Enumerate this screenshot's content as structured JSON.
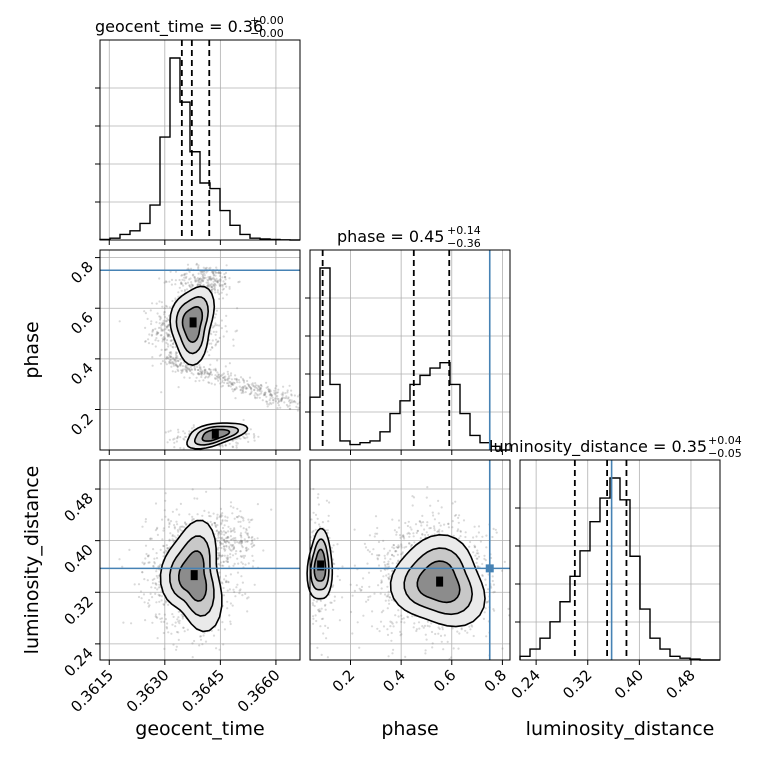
{
  "chart_data": {
    "type": "corner",
    "parameters": [
      {
        "name": "geocent_time",
        "label": "geocent_time",
        "range": [
          0.36125,
          0.36665
        ],
        "ticks": [
          0.3615,
          0.363,
          0.3645,
          0.366
        ],
        "tick_labels": [
          "0.3615",
          "0.3630",
          "0.3645",
          "0.3660"
        ]
      },
      {
        "name": "phase",
        "label": "phase",
        "range": [
          0.04,
          0.83
        ],
        "ticks": [
          0.2,
          0.4,
          0.6,
          0.8
        ],
        "tick_labels": [
          "0.2",
          "0.4",
          "0.6",
          "0.8"
        ]
      },
      {
        "name": "luminosity_distance",
        "label": "luminosity_distance",
        "range": [
          0.215,
          0.525
        ],
        "ticks": [
          0.24,
          0.32,
          0.4,
          0.48
        ],
        "tick_labels": [
          "0.24",
          "0.32",
          "0.40",
          "0.48"
        ]
      }
    ],
    "titles": [
      {
        "text": "geocent_time = 0.36",
        "sup": "+0.00",
        "sub": "−0.00"
      },
      {
        "text": "phase = 0.45",
        "sup": "+0.14",
        "sub": "−0.36"
      },
      {
        "text": "luminosity_distance = 0.35",
        "sup": "+0.04",
        "sub": "−0.05"
      }
    ],
    "histograms": [
      {
        "bin_edges": [
          0.36125,
          0.36152,
          0.36179,
          0.36206,
          0.36233,
          0.3626,
          0.36287,
          0.36314,
          0.36341,
          0.36368,
          0.36395,
          0.36422,
          0.36449,
          0.36476,
          0.36503,
          0.3653,
          0.36557,
          0.36584,
          0.36611,
          0.36638,
          0.36665
        ],
        "counts": [
          0.003,
          0.01,
          0.03,
          0.05,
          0.09,
          0.19,
          0.56,
          0.99,
          0.75,
          0.48,
          0.31,
          0.28,
          0.16,
          0.08,
          0.03,
          0.01,
          0.006,
          0.003,
          0.001,
          0.0
        ],
        "quantiles": [
          0.36346,
          0.36373,
          0.3642
        ]
      },
      {
        "bin_edges": [
          0.04,
          0.0795,
          0.119,
          0.1585,
          0.198,
          0.2375,
          0.277,
          0.3165,
          0.356,
          0.3955,
          0.435,
          0.4745,
          0.514,
          0.5535,
          0.593,
          0.6325,
          0.672,
          0.7115,
          0.751,
          0.7905,
          0.83
        ],
        "counts": [
          0.29,
          1.0,
          0.36,
          0.05,
          0.03,
          0.04,
          0.05,
          0.1,
          0.2,
          0.27,
          0.36,
          0.41,
          0.45,
          0.48,
          0.36,
          0.2,
          0.08,
          0.04,
          0.02,
          0.0
        ],
        "quantiles": [
          0.09,
          0.45,
          0.59
        ],
        "truth": 0.75
      },
      {
        "bin_edges": [
          0.215,
          0.2305,
          0.246,
          0.2615,
          0.277,
          0.2925,
          0.308,
          0.3235,
          0.339,
          0.3545,
          0.37,
          0.3855,
          0.401,
          0.4165,
          0.432,
          0.4475,
          0.463,
          0.4785,
          0.494,
          0.5095,
          0.525
        ],
        "counts": [
          0.02,
          0.06,
          0.12,
          0.21,
          0.32,
          0.46,
          0.6,
          0.76,
          0.89,
          1.0,
          0.88,
          0.57,
          0.28,
          0.12,
          0.06,
          0.02,
          0.01,
          0.005,
          0.0,
          0.0
        ],
        "quantiles": [
          0.3,
          0.35,
          0.38
        ],
        "truth": 0.357
      }
    ],
    "truths": {
      "phase": 0.75,
      "luminosity_distance": 0.357
    },
    "grid": true
  }
}
